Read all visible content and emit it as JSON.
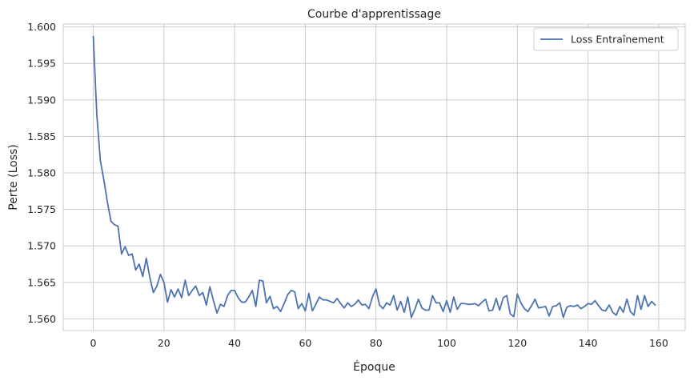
{
  "chart_data": {
    "type": "line",
    "title": "Courbe d'apprentissage",
    "xlabel": "Époque",
    "ylabel": "Perte (Loss)",
    "xlim": [
      -8.5,
      167.5
    ],
    "ylim": [
      1.5584,
      1.6004
    ],
    "xticks": [
      0,
      20,
      40,
      60,
      80,
      100,
      120,
      140,
      160
    ],
    "yticks": [
      1.56,
      1.565,
      1.57,
      1.575,
      1.58,
      1.585,
      1.59,
      1.595,
      1.6
    ],
    "grid": true,
    "legend": "top-right",
    "colors": {
      "line": "#4c72b0",
      "grid": "#cccccc",
      "text": "#262626"
    },
    "series": [
      {
        "name": "Loss Entraînement",
        "x": [
          0,
          1,
          2,
          3,
          4,
          5,
          6,
          7,
          8,
          9,
          10,
          11,
          12,
          13,
          14,
          15,
          16,
          17,
          18,
          19,
          20,
          21,
          22,
          23,
          24,
          25,
          26,
          27,
          28,
          29,
          30,
          31,
          32,
          33,
          34,
          35,
          36,
          37,
          38,
          39,
          40,
          41,
          42,
          43,
          44,
          45,
          46,
          47,
          48,
          49,
          50,
          51,
          52,
          53,
          54,
          55,
          56,
          57,
          58,
          59,
          60,
          61,
          62,
          63,
          64,
          65,
          66,
          67,
          68,
          69,
          70,
          71,
          72,
          73,
          74,
          75,
          76,
          77,
          78,
          79,
          80,
          81,
          82,
          83,
          84,
          85,
          86,
          87,
          88,
          89,
          90,
          91,
          92,
          93,
          94,
          95,
          96,
          97,
          98,
          99,
          100,
          101,
          102,
          103,
          104,
          105,
          106,
          107,
          108,
          109,
          110,
          111,
          112,
          113,
          114,
          115,
          116,
          117,
          118,
          119,
          120,
          121,
          122,
          123,
          124,
          125,
          126,
          127,
          128,
          129,
          130,
          131,
          132,
          133,
          134,
          135,
          136,
          137,
          138,
          139,
          140,
          141,
          142,
          143,
          144,
          145,
          146,
          147,
          148,
          149,
          150,
          151,
          152,
          153,
          154,
          155,
          156,
          157,
          158,
          159
        ],
        "y": [
          1.5987,
          1.588,
          1.5817,
          1.579,
          1.576,
          1.5734,
          1.5729,
          1.5727,
          1.5689,
          1.5699,
          1.5687,
          1.5689,
          1.5667,
          1.5675,
          1.5658,
          1.5683,
          1.5657,
          1.5636,
          1.5645,
          1.5661,
          1.565,
          1.5623,
          1.564,
          1.563,
          1.5641,
          1.5629,
          1.5653,
          1.5632,
          1.5639,
          1.5645,
          1.5632,
          1.5636,
          1.5619,
          1.5644,
          1.5625,
          1.5608,
          1.562,
          1.5617,
          1.5632,
          1.5639,
          1.5639,
          1.5629,
          1.5623,
          1.5623,
          1.563,
          1.5639,
          1.5617,
          1.5653,
          1.5652,
          1.5622,
          1.5631,
          1.5614,
          1.5617,
          1.561,
          1.5621,
          1.5633,
          1.5639,
          1.5637,
          1.5614,
          1.5621,
          1.5611,
          1.5635,
          1.5611,
          1.562,
          1.563,
          1.5626,
          1.5626,
          1.5624,
          1.5622,
          1.5628,
          1.5621,
          1.5615,
          1.5622,
          1.5617,
          1.562,
          1.5626,
          1.5619,
          1.562,
          1.5614,
          1.563,
          1.5641,
          1.5619,
          1.5614,
          1.5622,
          1.5619,
          1.5632,
          1.5612,
          1.5624,
          1.5609,
          1.563,
          1.5602,
          1.5613,
          1.5627,
          1.5615,
          1.5612,
          1.5612,
          1.5632,
          1.5622,
          1.5622,
          1.561,
          1.5625,
          1.5609,
          1.563,
          1.5613,
          1.5621,
          1.5621,
          1.562,
          1.562,
          1.5621,
          1.5618,
          1.5623,
          1.5627,
          1.5611,
          1.5612,
          1.5628,
          1.5612,
          1.5629,
          1.5632,
          1.5607,
          1.5603,
          1.5634,
          1.5622,
          1.5614,
          1.561,
          1.5618,
          1.5627,
          1.5615,
          1.5616,
          1.5617,
          1.5604,
          1.5617,
          1.5618,
          1.5622,
          1.5602,
          1.5616,
          1.5618,
          1.5617,
          1.5619,
          1.5614,
          1.5617,
          1.5621,
          1.562,
          1.5625,
          1.5618,
          1.5612,
          1.5611,
          1.5619,
          1.5609,
          1.5605,
          1.5617,
          1.5609,
          1.5627,
          1.561,
          1.5605,
          1.5632,
          1.5613,
          1.5632,
          1.5617,
          1.5624,
          1.5619
        ]
      }
    ]
  }
}
